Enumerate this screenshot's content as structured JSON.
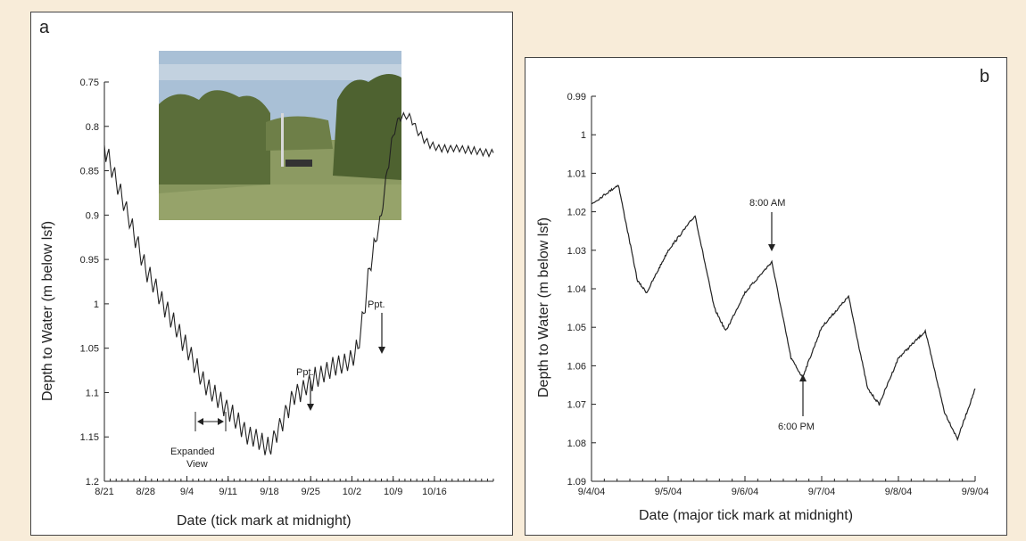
{
  "charts": [
    {
      "panel_label": "a",
      "xlabel": "Date (tick mark at midnight)",
      "ylabel": "Depth to Water (m below lsf)",
      "ytick_labels": [
        "0.75",
        "0.8",
        "0.85",
        "0.9",
        "0.95",
        "1",
        "1.05",
        "1.1",
        "1.15",
        "1.2"
      ],
      "xtick_labels": [
        "8/21",
        "8/28",
        "9/4",
        "9/11",
        "9/18",
        "9/25",
        "10/2",
        "10/9",
        "10/16"
      ]
    },
    {
      "panel_label": "b",
      "xlabel": "Date (major tick mark at midnight)",
      "ylabel": "Depth to Water (m below lsf)",
      "ytick_labels": [
        "0.99",
        "1",
        "1.01",
        "1.02",
        "1.03",
        "1.04",
        "1.05",
        "1.06",
        "1.07",
        "1.08",
        "1.09"
      ],
      "xtick_labels": [
        "9/4/04",
        "9/5/04",
        "9/6/04",
        "9/7/04",
        "9/8/04",
        "9/9/04"
      ]
    }
  ],
  "annotations_a": {
    "ppt1": "Ppt.",
    "ppt2": "Ppt.",
    "expanded_line1": "Expanded",
    "expanded_line2": "View"
  },
  "annotations_b": {
    "am": "8:00 AM",
    "pm": "6:00 PM"
  },
  "photo": {
    "sky": "#a9c0d6",
    "vegetation": "#5b6e3a",
    "ground": "#8c9a62"
  },
  "chart_data": [
    {
      "type": "line",
      "x_unit": "days since 8/21",
      "y_inverted": true,
      "ylim": [
        0.75,
        1.2
      ],
      "xlim": [
        0,
        66
      ],
      "series": [
        {
          "x": [
            0,
            3,
            7,
            10,
            14,
            17,
            21,
            24,
            28,
            30,
            31,
            32,
            34,
            36,
            38,
            39,
            41,
            42,
            43,
            44,
            45,
            46,
            47,
            48,
            49,
            50,
            51,
            52,
            53,
            55,
            57,
            60,
            63,
            66
          ],
          "values": [
            0.823,
            0.88,
            0.96,
            1.0,
            1.05,
            1.09,
            1.12,
            1.145,
            1.163,
            1.135,
            1.12,
            1.105,
            1.095,
            1.082,
            1.075,
            1.07,
            1.067,
            1.06,
            1.05,
            1.01,
            0.96,
            0.93,
            0.9,
            0.85,
            0.81,
            0.79,
            0.788,
            0.79,
            0.805,
            0.82,
            0.825,
            0.825,
            0.828,
            0.83
          ]
        }
      ]
    },
    {
      "type": "line",
      "x_unit": "days since 9/4/04",
      "y_inverted": true,
      "ylim": [
        0.99,
        1.09
      ],
      "xlim": [
        0,
        5
      ],
      "series": [
        {
          "x": [
            0,
            0.35,
            0.6,
            0.72,
            1.0,
            1.35,
            1.6,
            1.75,
            2.0,
            2.35,
            2.6,
            2.75,
            3.0,
            3.35,
            3.6,
            3.75,
            4.0,
            4.35,
            4.6,
            4.77,
            5.0
          ],
          "values": [
            1.018,
            1.013,
            1.038,
            1.041,
            1.03,
            1.021,
            1.045,
            1.051,
            1.041,
            1.033,
            1.058,
            1.063,
            1.05,
            1.042,
            1.066,
            1.07,
            1.058,
            1.051,
            1.072,
            1.079,
            1.066
          ]
        }
      ]
    }
  ]
}
